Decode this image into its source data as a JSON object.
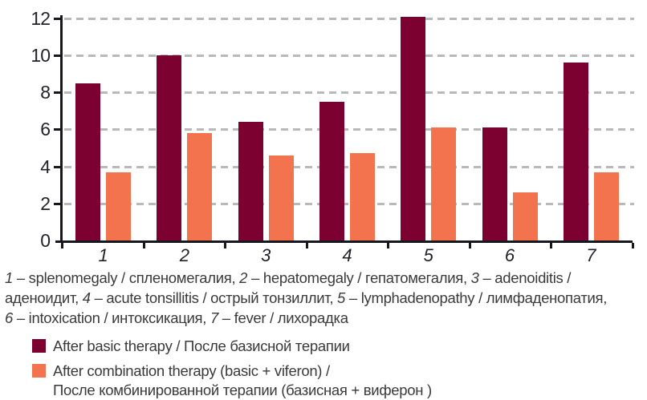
{
  "chart_data": {
    "type": "bar",
    "title": "",
    "xlabel": "",
    "ylabel": "",
    "categories": [
      "1",
      "2",
      "3",
      "4",
      "5",
      "6",
      "7"
    ],
    "series": [
      {
        "name": "After basic therapy / После базисной терапии",
        "color": "#7d0130",
        "values": [
          8.5,
          10.0,
          6.4,
          7.5,
          12.1,
          6.1,
          9.6
        ]
      },
      {
        "name": "After combination therapy (basic + viferon) / После комбинированной терапии (базисная + виферон )",
        "color": "#f3734f",
        "values": [
          3.7,
          5.8,
          4.6,
          4.7,
          6.1,
          2.6,
          3.7
        ]
      }
    ],
    "ylim": [
      0,
      12
    ],
    "yticks": [
      0,
      2,
      4,
      6,
      8,
      10,
      12
    ],
    "grid": "horizontal-dashed",
    "legend_position": "bottom-left"
  },
  "caption": {
    "lines": [
      [
        {
          "it": "1"
        },
        {
          "t": " – splenomegaly / спленомегалия, "
        },
        {
          "it": "2"
        },
        {
          "t": " – hepatomegaly / гепатомегалия, "
        },
        {
          "it": "3"
        },
        {
          "t": " – adenoiditis /"
        }
      ],
      [
        {
          "t": "аденоидит, "
        },
        {
          "it": "4"
        },
        {
          "t": " – acute tonsillitis / острый тонзиллит, "
        },
        {
          "it": "5"
        },
        {
          "t": " – lymphadenopathy / лимфаденопатия,"
        }
      ],
      [
        {
          "it": "6"
        },
        {
          "t": " – intoxication / интоксикация, "
        },
        {
          "it": "7"
        },
        {
          "t": " – fever / лихорадка"
        }
      ]
    ]
  },
  "legend": {
    "items": [
      {
        "swatch_color": "#7d0130",
        "lines": [
          "After basic therapy / После базисной терапии"
        ]
      },
      {
        "swatch_color": "#f3734f",
        "lines": [
          "After combination therapy (basic + viferon) /",
          "После комбинированной терапии (базисная + виферон )"
        ]
      }
    ]
  },
  "colors": {
    "series1": "#7d0130",
    "series2": "#f3734f",
    "gridline": "#b9b9b9",
    "axis": "#17171f",
    "text": "#3a3a3a",
    "tick_text": "#22222c",
    "background": "#ffffff"
  }
}
